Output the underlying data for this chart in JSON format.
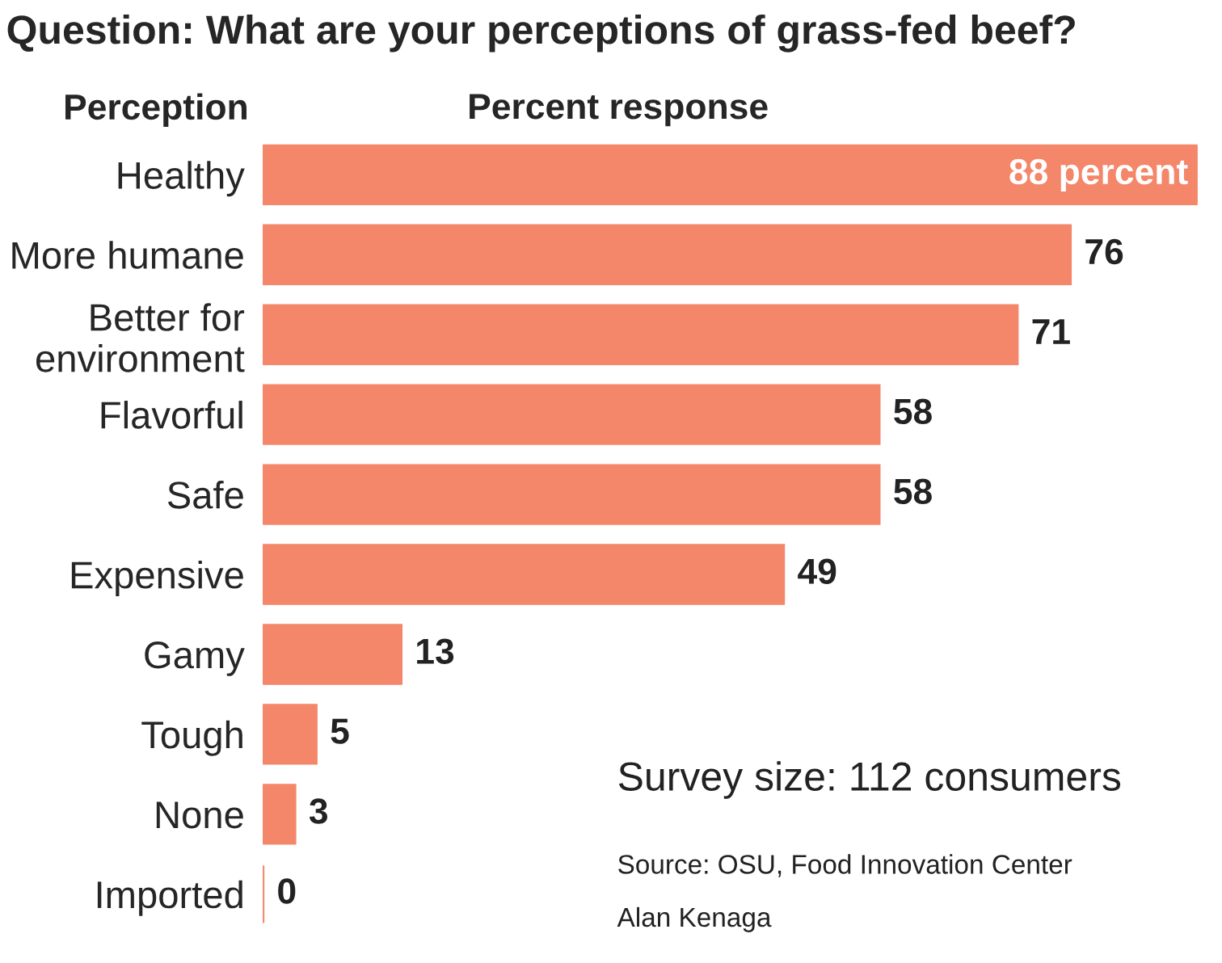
{
  "chart_data": {
    "type": "bar",
    "orientation": "horizontal",
    "title": "Question: What are your perceptions of grass-fed beef?",
    "ylabel": "Perception",
    "xlabel": "Percent response",
    "categories": [
      "Healthy",
      "More humane",
      "Better for\nenvironment",
      "Flavorful",
      "Safe",
      "Expensive",
      "Gamy",
      "Tough",
      "None",
      "Imported"
    ],
    "values": [
      88,
      76,
      71,
      58,
      58,
      49,
      13,
      5,
      3,
      0
    ],
    "value_labels": [
      "88 percent",
      "76",
      "71",
      "58",
      "58",
      "49",
      "13",
      "5",
      "3",
      "0"
    ],
    "color": "#f4866a",
    "annotations": [
      "Survey size: 112 consumers",
      "Source: OSU, Food Innovation Center",
      "Alan Kenaga"
    ],
    "grid": false,
    "legend": false
  }
}
